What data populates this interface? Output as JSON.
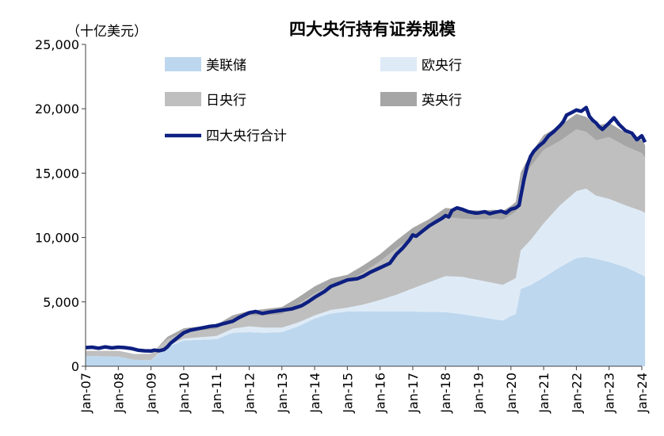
{
  "chart_data": {
    "type": "area",
    "title": "四大央行持有证券规模",
    "unit_label": "（十亿美元）",
    "ylim": [
      0,
      25000
    ],
    "y_ticks": [
      0,
      5000,
      10000,
      15000,
      20000,
      25000
    ],
    "y_tick_labels": [
      "0",
      "5,000",
      "10,000",
      "15,000",
      "20,000",
      "25,000"
    ],
    "x_range": [
      2007.0,
      2024.0
    ],
    "x_ticks": [
      2007,
      2008,
      2009,
      2010,
      2011,
      2012,
      2013,
      2014,
      2015,
      2016,
      2017,
      2018,
      2019,
      2020,
      2021,
      2022,
      2023,
      2024
    ],
    "x_tick_labels": [
      "Jan-07",
      "Jan-08",
      "Jan-09",
      "Jan-10",
      "Jan-11",
      "Jan-12",
      "Jan-13",
      "Jan-14",
      "Jan-15",
      "Jan-16",
      "Jan-17",
      "Jan-18",
      "Jan-19",
      "Jan-20",
      "Jan-21",
      "Jan-22",
      "Jan-23",
      "Jan-24"
    ],
    "legend": [
      "美联储",
      "欧央行",
      "日央行",
      "英央行",
      "四大央行合计"
    ],
    "stack_series": [
      {
        "name": "美联储",
        "color": "#bdd7ee",
        "points": [
          [
            2007.0,
            800
          ],
          [
            2008.0,
            750
          ],
          [
            2008.5,
            500
          ],
          [
            2009.0,
            480
          ],
          [
            2009.25,
            1000
          ],
          [
            2009.5,
            1500
          ],
          [
            2010.0,
            2000
          ],
          [
            2010.5,
            2050
          ],
          [
            2011.0,
            2100
          ],
          [
            2011.5,
            2600
          ],
          [
            2012.0,
            2650
          ],
          [
            2012.5,
            2600
          ],
          [
            2013.0,
            2650
          ],
          [
            2013.5,
            3100
          ],
          [
            2014.0,
            3700
          ],
          [
            2014.5,
            4100
          ],
          [
            2015.0,
            4250
          ],
          [
            2016.0,
            4250
          ],
          [
            2017.0,
            4250
          ],
          [
            2018.0,
            4200
          ],
          [
            2018.5,
            4050
          ],
          [
            2019.0,
            3850
          ],
          [
            2019.5,
            3650
          ],
          [
            2019.75,
            3550
          ],
          [
            2020.0,
            3900
          ],
          [
            2020.15,
            4050
          ],
          [
            2020.3,
            6000
          ],
          [
            2020.6,
            6300
          ],
          [
            2021.0,
            6900
          ],
          [
            2021.5,
            7700
          ],
          [
            2022.0,
            8400
          ],
          [
            2022.3,
            8500
          ],
          [
            2022.6,
            8350
          ],
          [
            2023.0,
            8100
          ],
          [
            2023.5,
            7700
          ],
          [
            2024.0,
            7100
          ],
          [
            2024.1,
            6950
          ]
        ]
      },
      {
        "name": "欧央行",
        "color": "#deebf7",
        "points": [
          [
            2007.0,
            0
          ],
          [
            2008.0,
            0
          ],
          [
            2009.0,
            0
          ],
          [
            2009.5,
            80
          ],
          [
            2010.0,
            150
          ],
          [
            2011.0,
            250
          ],
          [
            2011.5,
            320
          ],
          [
            2012.0,
            450
          ],
          [
            2013.0,
            350
          ],
          [
            2014.0,
            250
          ],
          [
            2015.0,
            300
          ],
          [
            2015.5,
            550
          ],
          [
            2016.0,
            900
          ],
          [
            2016.5,
            1300
          ],
          [
            2017.0,
            1800
          ],
          [
            2017.5,
            2300
          ],
          [
            2018.0,
            2800
          ],
          [
            2018.5,
            2900
          ],
          [
            2019.0,
            2850
          ],
          [
            2019.5,
            2800
          ],
          [
            2020.0,
            2750
          ],
          [
            2020.15,
            2800
          ],
          [
            2020.3,
            3000
          ],
          [
            2020.6,
            3500
          ],
          [
            2021.0,
            4200
          ],
          [
            2021.5,
            4800
          ],
          [
            2022.0,
            5200
          ],
          [
            2022.3,
            5300
          ],
          [
            2022.6,
            4900
          ],
          [
            2023.0,
            4900
          ],
          [
            2023.5,
            4800
          ],
          [
            2024.0,
            4950
          ],
          [
            2024.1,
            4950
          ]
        ]
      },
      {
        "name": "日央行",
        "color": "#bfbfbf",
        "points": [
          [
            2007.0,
            400
          ],
          [
            2008.0,
            450
          ],
          [
            2008.5,
            450
          ],
          [
            2009.0,
            500
          ],
          [
            2010.0,
            500
          ],
          [
            2011.0,
            550
          ],
          [
            2012.0,
            850
          ],
          [
            2013.0,
            1050
          ],
          [
            2013.5,
            1400
          ],
          [
            2014.0,
            1700
          ],
          [
            2014.5,
            1900
          ],
          [
            2015.0,
            2000
          ],
          [
            2015.5,
            2500
          ],
          [
            2016.0,
            3000
          ],
          [
            2016.5,
            3600
          ],
          [
            2017.0,
            4000
          ],
          [
            2017.5,
            4200
          ],
          [
            2018.0,
            4600
          ],
          [
            2018.5,
            4500
          ],
          [
            2019.0,
            4700
          ],
          [
            2019.5,
            5000
          ],
          [
            2020.0,
            5100
          ],
          [
            2020.3,
            5200
          ],
          [
            2020.6,
            5700
          ],
          [
            2021.0,
            5700
          ],
          [
            2021.5,
            5000
          ],
          [
            2022.0,
            4800
          ],
          [
            2022.3,
            4400
          ],
          [
            2022.6,
            4300
          ],
          [
            2023.0,
            4800
          ],
          [
            2023.5,
            4600
          ],
          [
            2024.0,
            4500
          ],
          [
            2024.1,
            4300
          ]
        ]
      },
      {
        "name": "英央行",
        "color": "#a6a6a6",
        "points": [
          [
            2007.0,
            0
          ],
          [
            2009.0,
            0
          ],
          [
            2009.25,
            50
          ],
          [
            2009.5,
            200
          ],
          [
            2010.0,
            300
          ],
          [
            2012.0,
            350
          ],
          [
            2012.5,
            500
          ],
          [
            2013.0,
            550
          ],
          [
            2016.0,
            550
          ],
          [
            2016.7,
            650
          ],
          [
            2017.0,
            700
          ],
          [
            2020.0,
            700
          ],
          [
            2020.3,
            850
          ],
          [
            2020.6,
            1000
          ],
          [
            2021.0,
            1150
          ],
          [
            2021.5,
            1200
          ],
          [
            2022.0,
            1200
          ],
          [
            2023.0,
            1100
          ],
          [
            2024.0,
            1000
          ],
          [
            2024.1,
            980
          ]
        ]
      }
    ],
    "total_series": {
      "name": "四大央行合计",
      "color": "#0d1f80",
      "points": [
        [
          2007.0,
          1450
        ],
        [
          2007.2,
          1480
        ],
        [
          2007.4,
          1400
        ],
        [
          2007.6,
          1500
        ],
        [
          2007.8,
          1420
        ],
        [
          2008.0,
          1480
        ],
        [
          2008.2,
          1450
        ],
        [
          2008.4,
          1380
        ],
        [
          2008.6,
          1250
        ],
        [
          2008.8,
          1200
        ],
        [
          2009.0,
          1180
        ],
        [
          2009.1,
          1250
        ],
        [
          2009.25,
          1200
        ],
        [
          2009.4,
          1300
        ],
        [
          2009.5,
          1500
        ],
        [
          2009.6,
          1800
        ],
        [
          2009.8,
          2200
        ],
        [
          2010.0,
          2600
        ],
        [
          2010.2,
          2800
        ],
        [
          2010.4,
          2900
        ],
        [
          2010.6,
          3000
        ],
        [
          2010.8,
          3100
        ],
        [
          2011.0,
          3150
        ],
        [
          2011.2,
          3300
        ],
        [
          2011.5,
          3500
        ],
        [
          2011.7,
          3800
        ],
        [
          2012.0,
          4150
        ],
        [
          2012.2,
          4250
        ],
        [
          2012.4,
          4100
        ],
        [
          2012.6,
          4200
        ],
        [
          2013.0,
          4350
        ],
        [
          2013.3,
          4450
        ],
        [
          2013.6,
          4700
        ],
        [
          2013.8,
          5000
        ],
        [
          2014.0,
          5350
        ],
        [
          2014.3,
          5800
        ],
        [
          2014.5,
          6200
        ],
        [
          2014.7,
          6400
        ],
        [
          2015.0,
          6700
        ],
        [
          2015.3,
          6800
        ],
        [
          2015.5,
          7000
        ],
        [
          2015.7,
          7300
        ],
        [
          2016.0,
          7650
        ],
        [
          2016.3,
          8000
        ],
        [
          2016.5,
          8700
        ],
        [
          2016.7,
          9200
        ],
        [
          2016.9,
          9800
        ],
        [
          2017.0,
          10200
        ],
        [
          2017.1,
          10100
        ],
        [
          2017.3,
          10500
        ],
        [
          2017.5,
          10900
        ],
        [
          2017.7,
          11200
        ],
        [
          2017.9,
          11500
        ],
        [
          2018.0,
          11700
        ],
        [
          2018.1,
          11600
        ],
        [
          2018.2,
          12100
        ],
        [
          2018.35,
          12300
        ],
        [
          2018.5,
          12200
        ],
        [
          2018.7,
          12000
        ],
        [
          2018.9,
          11900
        ],
        [
          2019.0,
          11900
        ],
        [
          2019.2,
          12000
        ],
        [
          2019.35,
          11850
        ],
        [
          2019.5,
          11950
        ],
        [
          2019.7,
          12050
        ],
        [
          2019.85,
          11900
        ],
        [
          2020.0,
          12200
        ],
        [
          2020.15,
          12300
        ],
        [
          2020.25,
          12500
        ],
        [
          2020.3,
          13200
        ],
        [
          2020.4,
          14500
        ],
        [
          2020.5,
          15600
        ],
        [
          2020.6,
          16300
        ],
        [
          2020.7,
          16700
        ],
        [
          2020.85,
          17100
        ],
        [
          2021.0,
          17400
        ],
        [
          2021.15,
          17900
        ],
        [
          2021.3,
          18200
        ],
        [
          2021.5,
          18700
        ],
        [
          2021.6,
          19000
        ],
        [
          2021.7,
          19500
        ],
        [
          2021.85,
          19700
        ],
        [
          2022.0,
          19900
        ],
        [
          2022.15,
          19800
        ],
        [
          2022.3,
          20100
        ],
        [
          2022.4,
          19400
        ],
        [
          2022.5,
          19100
        ],
        [
          2022.6,
          18900
        ],
        [
          2022.7,
          18600
        ],
        [
          2022.8,
          18400
        ],
        [
          2023.0,
          18900
        ],
        [
          2023.15,
          19300
        ],
        [
          2023.3,
          18800
        ],
        [
          2023.5,
          18300
        ],
        [
          2023.7,
          18100
        ],
        [
          2023.85,
          17600
        ],
        [
          2024.0,
          17900
        ],
        [
          2024.1,
          17400
        ]
      ]
    }
  }
}
